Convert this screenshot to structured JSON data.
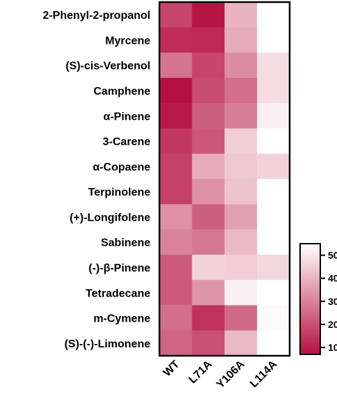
{
  "chart_data": {
    "type": "heatmap",
    "rows": [
      "2-Phenyl-2-propanol",
      "Myrcene",
      "(S)-cis-Verbenol",
      "Camphene",
      "α-Pinene",
      "3-Carene",
      "α-Copaene",
      "Terpinolene",
      "(+)-Longifolene",
      "Sabinene",
      "(-)-β-Pinene",
      "Tetradecane",
      "m-Cymene",
      "(S)-(-)-Limonene"
    ],
    "columns": [
      "WT",
      "L71A",
      "Y106A",
      "L114A"
    ],
    "values": [
      [
        18,
        8,
        40,
        55
      ],
      [
        13,
        12,
        38,
        55
      ],
      [
        27,
        18,
        32,
        48
      ],
      [
        7,
        19,
        26,
        48
      ],
      [
        9,
        23,
        29,
        52
      ],
      [
        15,
        21,
        45,
        55
      ],
      [
        17,
        38,
        44,
        46
      ],
      [
        17,
        33,
        43,
        55
      ],
      [
        33,
        23,
        36,
        55
      ],
      [
        30,
        28,
        41,
        55
      ],
      [
        22,
        46,
        45,
        47
      ],
      [
        22,
        34,
        52,
        55
      ],
      [
        26,
        14,
        25,
        54
      ],
      [
        24,
        20,
        41,
        55
      ]
    ],
    "colorbar": {
      "ticks": [
        10,
        20,
        30,
        40,
        50
      ],
      "range": [
        7,
        55
      ],
      "low_color": "#b5103f",
      "high_color": "#ffffff"
    }
  }
}
